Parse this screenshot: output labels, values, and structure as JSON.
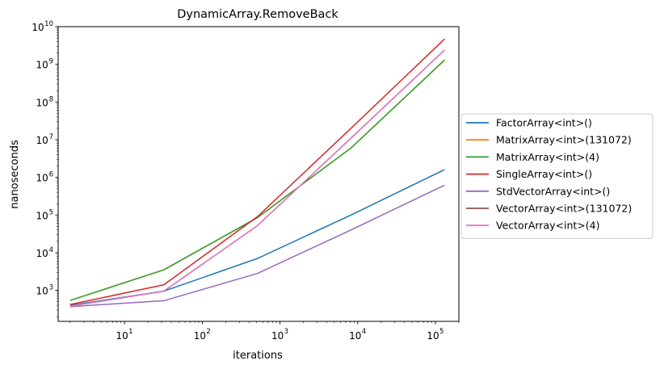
{
  "chart_data": {
    "type": "line",
    "title": "DynamicArray.RemoveBack",
    "xlabel": "iterations",
    "ylabel": "nanoseconds",
    "xscale": "log",
    "yscale": "log",
    "xlim": [
      1.4,
      200000
    ],
    "ylim": [
      150,
      10000000000
    ],
    "x_ticks": [
      {
        "value": 10,
        "base": "10",
        "exp": "1"
      },
      {
        "value": 100,
        "base": "10",
        "exp": "2"
      },
      {
        "value": 1000,
        "base": "10",
        "exp": "3"
      },
      {
        "value": 10000,
        "base": "10",
        "exp": "4"
      },
      {
        "value": 100000,
        "base": "10",
        "exp": "5"
      }
    ],
    "y_ticks": [
      {
        "value": 1000,
        "base": "10",
        "exp": "3"
      },
      {
        "value": 10000,
        "base": "10",
        "exp": "4"
      },
      {
        "value": 100000,
        "base": "10",
        "exp": "5"
      },
      {
        "value": 1000000,
        "base": "10",
        "exp": "6"
      },
      {
        "value": 10000000,
        "base": "10",
        "exp": "7"
      },
      {
        "value": 100000000,
        "base": "10",
        "exp": "8"
      },
      {
        "value": 1000000000,
        "base": "10",
        "exp": "9"
      },
      {
        "value": 10000000000,
        "base": "10",
        "exp": "10"
      }
    ],
    "legend_position": "outside-right",
    "grid": false,
    "x": [
      2,
      32,
      512,
      8192,
      131072
    ],
    "series": [
      {
        "name": "FactorArray<int>()",
        "color": "#1f77b4",
        "values": [
          400,
          950,
          7000,
          100000,
          1600000
        ]
      },
      {
        "name": "MatrixArray<int>(131072)",
        "color": "#ff7f0e",
        "values": [
          540,
          3500,
          85000,
          6000000,
          1300000000
        ]
      },
      {
        "name": "MatrixArray<int>(4)",
        "color": "#2ca02c",
        "values": [
          540,
          3500,
          85000,
          6000000,
          1300000000
        ]
      },
      {
        "name": "SingleArray<int>()",
        "color": "#d62728",
        "values": [
          420,
          1400,
          90000,
          20000000,
          4700000000
        ]
      },
      {
        "name": "StdVectorArray<int>()",
        "color": "#9467bd",
        "values": [
          370,
          530,
          2800,
          40000,
          620000
        ]
      },
      {
        "name": "VectorArray<int>(131072)",
        "color": "#8c564b",
        "values": [
          380,
          950,
          52000,
          11000000,
          2400000000
        ]
      },
      {
        "name": "VectorArray<int>(4)",
        "color": "#e377c2",
        "values": [
          380,
          950,
          52000,
          11000000,
          2400000000
        ]
      }
    ]
  }
}
